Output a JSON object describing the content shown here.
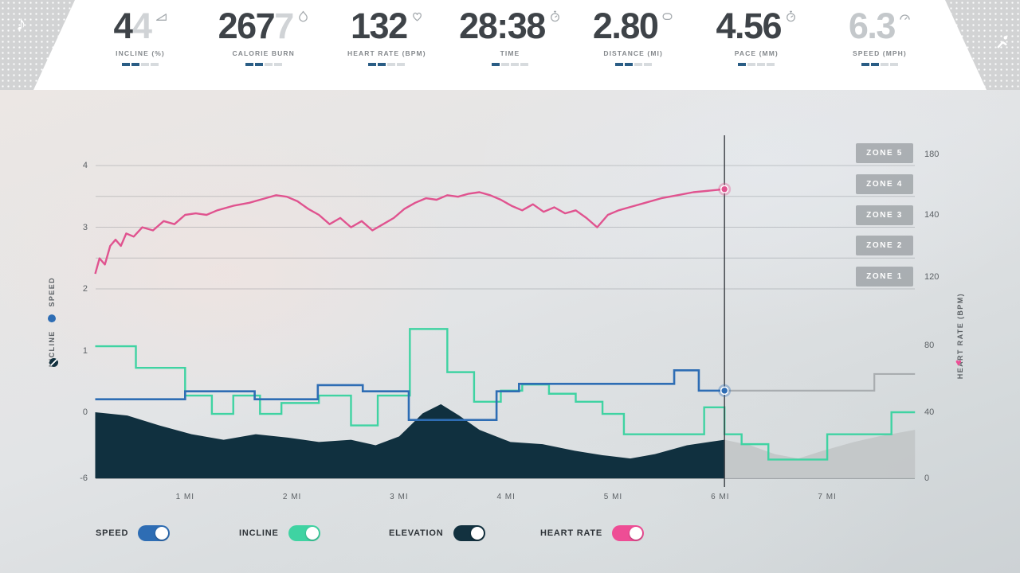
{
  "header": {
    "left_icon": "music-note-icon",
    "right_icon": "activity-icon",
    "metrics": [
      {
        "value": "4",
        "ghost": "4",
        "label": "INCLINE (%)",
        "icon": "incline-icon",
        "bar_filled": 2,
        "bar_total": 4,
        "muted": false
      },
      {
        "value": "267",
        "ghost": "7",
        "label": "CALORIE BURN",
        "icon": "flame-icon",
        "bar_filled": 2,
        "bar_total": 4,
        "muted": false
      },
      {
        "value": "132",
        "ghost": "",
        "label": "HEART RATE (BPM)",
        "icon": "heart-icon",
        "bar_filled": 2,
        "bar_total": 4,
        "muted": false
      },
      {
        "value": "28:38",
        "ghost": "",
        "label": "TIME",
        "icon": "stopwatch-icon",
        "bar_filled": 1,
        "bar_total": 4,
        "muted": false
      },
      {
        "value": "2.80",
        "ghost": "",
        "label": "DISTANCE (MI)",
        "icon": "track-icon",
        "bar_filled": 2,
        "bar_total": 4,
        "muted": false
      },
      {
        "value": "4.56",
        "ghost": "",
        "label": "PACE (MM)",
        "icon": "pace-icon",
        "bar_filled": 1,
        "bar_total": 4,
        "muted": false
      },
      {
        "value": "6.3",
        "ghost": "",
        "label": "SPEED (MPH)",
        "icon": "speedometer-icon",
        "bar_filled": 2,
        "bar_total": 4,
        "muted": true
      }
    ]
  },
  "chart_data": {
    "type": "line",
    "x_unit": "mi",
    "x_range": [
      0.16,
      7.82
    ],
    "x_ticks": [
      {
        "label": "1 MI",
        "mi": 1
      },
      {
        "label": "2 MI",
        "mi": 2
      },
      {
        "label": "3 MI",
        "mi": 3
      },
      {
        "label": "4 MI",
        "mi": 4
      },
      {
        "label": "5 MI",
        "mi": 5
      },
      {
        "label": "6 MI",
        "mi": 6
      },
      {
        "label": "7 MI",
        "mi": 7
      }
    ],
    "left_axis": {
      "label_incline": "INCLINE",
      "label_speed": "SPEED",
      "ticks": [
        4,
        3,
        2,
        1,
        0,
        -6
      ]
    },
    "right_axis": {
      "label": "HEART RATE (BPM)",
      "ticks": [
        180,
        140,
        120,
        80,
        40,
        0
      ]
    },
    "grid_values": [
      4,
      3.5,
      3,
      2.5,
      2
    ],
    "zones": [
      "ZONE 5",
      "ZONE 4",
      "ZONE 3",
      "ZONE 2",
      "ZONE 1"
    ],
    "cursor": {
      "mi": 6.04,
      "heart_rate_bpm": 157,
      "speed_value": 0.35
    },
    "series": [
      {
        "name": "heart_rate",
        "type": "line",
        "axis": "right",
        "color": "#e0538f",
        "points": [
          [
            0.16,
            121
          ],
          [
            0.2,
            126
          ],
          [
            0.25,
            124
          ],
          [
            0.3,
            130
          ],
          [
            0.35,
            132
          ],
          [
            0.4,
            130
          ],
          [
            0.45,
            134
          ],
          [
            0.52,
            133
          ],
          [
            0.6,
            136
          ],
          [
            0.7,
            135
          ],
          [
            0.8,
            138
          ],
          [
            0.9,
            137
          ],
          [
            1.0,
            140
          ],
          [
            1.1,
            141
          ],
          [
            1.2,
            140
          ],
          [
            1.3,
            143
          ],
          [
            1.45,
            146
          ],
          [
            1.6,
            148
          ],
          [
            1.75,
            151
          ],
          [
            1.85,
            153
          ],
          [
            1.95,
            152
          ],
          [
            2.05,
            149
          ],
          [
            2.15,
            144
          ],
          [
            2.25,
            140
          ],
          [
            2.35,
            137
          ],
          [
            2.45,
            139
          ],
          [
            2.55,
            136
          ],
          [
            2.65,
            138
          ],
          [
            2.75,
            135
          ],
          [
            2.85,
            137
          ],
          [
            2.95,
            139
          ],
          [
            3.05,
            144
          ],
          [
            3.15,
            148
          ],
          [
            3.25,
            151
          ],
          [
            3.35,
            150
          ],
          [
            3.45,
            153
          ],
          [
            3.55,
            152
          ],
          [
            3.65,
            154
          ],
          [
            3.75,
            155
          ],
          [
            3.85,
            153
          ],
          [
            3.95,
            150
          ],
          [
            4.05,
            146
          ],
          [
            4.15,
            143
          ],
          [
            4.25,
            147
          ],
          [
            4.35,
            142
          ],
          [
            4.45,
            145
          ],
          [
            4.55,
            141
          ],
          [
            4.65,
            143
          ],
          [
            4.75,
            139
          ],
          [
            4.85,
            136
          ],
          [
            4.95,
            140
          ],
          [
            5.05,
            143
          ],
          [
            5.15,
            145
          ],
          [
            5.3,
            148
          ],
          [
            5.45,
            151
          ],
          [
            5.6,
            153
          ],
          [
            5.75,
            155
          ],
          [
            5.9,
            156
          ],
          [
            6.04,
            157
          ]
        ]
      },
      {
        "name": "speed",
        "type": "step",
        "axis": "left",
        "color": "#2e6db4",
        "future_color": "#a9adb0",
        "end_mi": 7.82,
        "steps": [
          [
            0.16,
            0.21
          ],
          [
            1.0,
            0.34
          ],
          [
            1.65,
            0.21
          ],
          [
            2.24,
            0.44
          ],
          [
            2.66,
            0.34
          ],
          [
            3.09,
            -0.7
          ],
          [
            3.91,
            0.34
          ],
          [
            4.12,
            0.46
          ],
          [
            5.57,
            0.68
          ],
          [
            5.8,
            0.35
          ]
        ],
        "future_steps": [
          [
            6.04,
            0.35
          ],
          [
            7.44,
            0.62
          ]
        ]
      },
      {
        "name": "incline",
        "type": "step",
        "axis": "left",
        "color": "#3fd3a2",
        "end_mi": 7.82,
        "steps": [
          [
            0.16,
            1.07
          ],
          [
            0.54,
            0.72
          ],
          [
            1.0,
            0.27
          ],
          [
            1.25,
            -0.15
          ],
          [
            1.45,
            0.27
          ],
          [
            1.7,
            -0.15
          ],
          [
            1.9,
            0.15
          ],
          [
            2.25,
            0.27
          ],
          [
            2.55,
            -1.2
          ],
          [
            2.8,
            0.27
          ],
          [
            3.1,
            1.35
          ],
          [
            3.45,
            0.65
          ],
          [
            3.7,
            0.17
          ],
          [
            3.95,
            0.35
          ],
          [
            4.15,
            0.45
          ],
          [
            4.4,
            0.3
          ],
          [
            4.65,
            0.17
          ],
          [
            4.9,
            -0.15
          ],
          [
            5.1,
            -2.0
          ],
          [
            5.85,
            0.08
          ],
          [
            6.04,
            -2.0
          ],
          [
            6.2,
            -2.9
          ],
          [
            6.45,
            -4.3
          ],
          [
            7.0,
            -2.0
          ],
          [
            7.6,
            0.0
          ]
        ]
      },
      {
        "name": "elevation",
        "type": "area",
        "axis": "left",
        "color": "#10303f",
        "future_color": "#c2c5c7",
        "points": [
          [
            0.16,
            0.0
          ],
          [
            0.46,
            -0.3
          ],
          [
            0.76,
            -1.2
          ],
          [
            1.06,
            -2.0
          ],
          [
            1.36,
            -2.5
          ],
          [
            1.66,
            -2.0
          ],
          [
            1.96,
            -2.3
          ],
          [
            2.25,
            -2.7
          ],
          [
            2.55,
            -2.5
          ],
          [
            2.78,
            -3.0
          ],
          [
            3.0,
            -2.2
          ],
          [
            3.22,
            -0.1
          ],
          [
            3.39,
            0.13
          ],
          [
            3.56,
            -0.3
          ],
          [
            3.75,
            -1.6
          ],
          [
            4.04,
            -2.7
          ],
          [
            4.34,
            -2.9
          ],
          [
            4.64,
            -3.5
          ],
          [
            4.9,
            -3.9
          ],
          [
            5.16,
            -4.2
          ],
          [
            5.39,
            -3.8
          ],
          [
            5.69,
            -3.0
          ],
          [
            6.04,
            -2.5
          ]
        ],
        "future_points": [
          [
            6.04,
            -2.5
          ],
          [
            6.28,
            -3.0
          ],
          [
            6.51,
            -3.8
          ],
          [
            6.73,
            -4.2
          ],
          [
            6.96,
            -3.5
          ],
          [
            7.25,
            -2.7
          ],
          [
            7.48,
            -2.2
          ],
          [
            7.82,
            -1.6
          ]
        ]
      }
    ]
  },
  "legend": [
    {
      "label": "SPEED",
      "color": "#2e6db4",
      "on": true
    },
    {
      "label": "INCLINE",
      "color": "#3fd3a2",
      "on": true
    },
    {
      "label": "ELEVATION",
      "color": "#12313f",
      "on": true
    },
    {
      "label": "HEART RATE",
      "color": "#ee4d95",
      "on": true
    }
  ]
}
